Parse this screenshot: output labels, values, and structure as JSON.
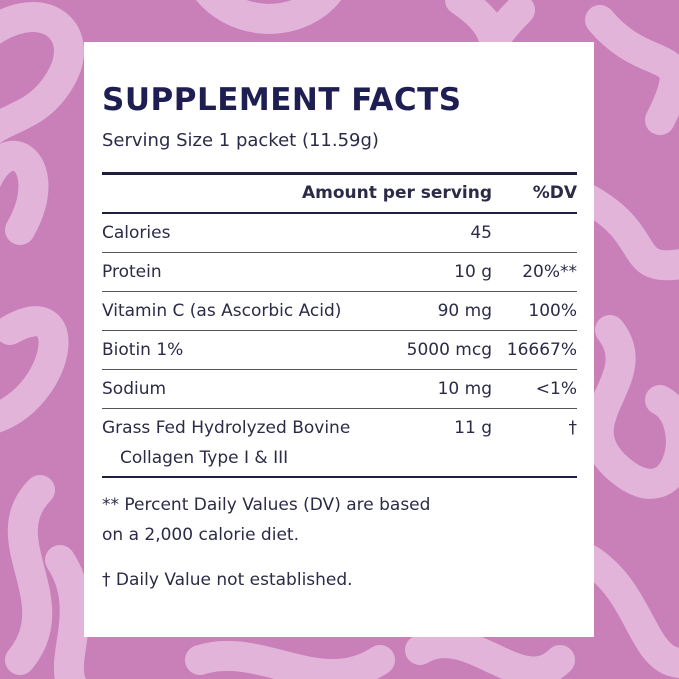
{
  "header": {
    "title": "SUPPLEMENT FACTS",
    "serving": "Serving Size 1 packet (11.59g)"
  },
  "table": {
    "columns": [
      "Amount per serving",
      "%DV"
    ],
    "rows": [
      {
        "name": [
          "Calories"
        ],
        "amount": "45"
      },
      {
        "name": [
          "Protein"
        ],
        "amount": "10 g",
        "dv": "20%**"
      },
      {
        "name": [
          "Vitamin C (as Ascorbic Acid)"
        ],
        "amount": "90 mg",
        "dv": "100%"
      },
      {
        "name": [
          "Biotin 1%"
        ],
        "amount": "5000 mcg",
        "dv": "16667%"
      },
      {
        "name": [
          "Sodium"
        ],
        "amount": "10 mg",
        "dv": "<1%"
      },
      {
        "name": [
          "Grass Fed Hydrolyzed Bovine",
          "Collagen Type I & III"
        ],
        "amount": "11 g",
        "dv": "†"
      }
    ]
  },
  "footnotes": [
    [
      "** Percent Daily Values (DV) are based",
      "on a 2,000 calorie diet."
    ],
    [
      "† Daily Value not established."
    ]
  ]
}
